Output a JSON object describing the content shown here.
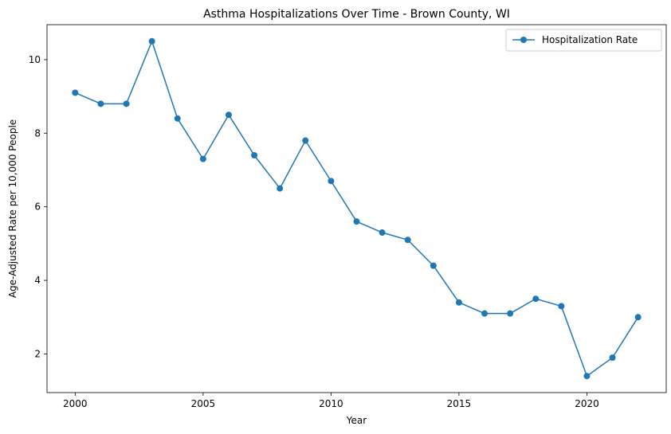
{
  "chart_data": {
    "type": "line",
    "title": "Asthma Hospitalizations Over Time - Brown County, WI",
    "xlabel": "Year",
    "ylabel": "Age-Adjusted Rate per 10,000 People",
    "x": [
      2000,
      2001,
      2002,
      2003,
      2004,
      2005,
      2006,
      2007,
      2008,
      2009,
      2010,
      2011,
      2012,
      2013,
      2014,
      2015,
      2016,
      2017,
      2018,
      2019,
      2020,
      2021,
      2022
    ],
    "series": [
      {
        "name": "Hospitalization Rate",
        "color": "#1f77b4",
        "marker": "circle",
        "values": [
          9.1,
          8.8,
          8.8,
          10.5,
          8.4,
          7.3,
          8.5,
          7.4,
          6.5,
          7.8,
          6.7,
          5.6,
          5.3,
          5.1,
          4.4,
          3.4,
          3.1,
          3.1,
          3.5,
          3.3,
          1.4,
          1.9,
          3.0
        ]
      }
    ],
    "xlim": [
      1998.9,
      2023.1
    ],
    "ylim": [
      0.95,
      10.95
    ],
    "xticks": [
      "2000",
      "2005",
      "2010",
      "2015",
      "2020"
    ],
    "yticks": [
      "2",
      "4",
      "6",
      "8",
      "10"
    ],
    "legend_position": "top-right",
    "grid": false
  }
}
